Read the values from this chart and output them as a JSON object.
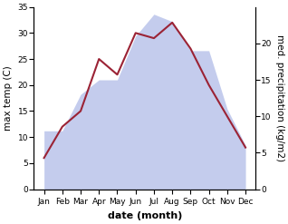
{
  "months": [
    "Jan",
    "Feb",
    "Mar",
    "Apr",
    "May",
    "Jun",
    "Jul",
    "Aug",
    "Sep",
    "Oct",
    "Nov",
    "Dec"
  ],
  "max_temp": [
    6,
    12,
    15,
    25,
    22,
    30,
    29,
    32,
    27,
    20,
    14,
    8
  ],
  "precipitation": [
    8,
    8,
    13,
    15,
    15,
    21,
    24,
    23,
    19,
    19,
    11,
    6
  ],
  "temp_ylim": [
    0,
    35
  ],
  "precip_ylim": [
    0,
    25
  ],
  "temp_yticks": [
    0,
    5,
    10,
    15,
    20,
    25,
    30,
    35
  ],
  "precip_yticks": [
    0,
    5,
    10,
    15,
    20
  ],
  "fill_color": "#b0bce8",
  "fill_alpha": 0.75,
  "line_color": "#9b2335",
  "line_width": 1.5,
  "xlabel": "date (month)",
  "ylabel_left": "max temp (C)",
  "ylabel_right": "med. precipitation (kg/m2)",
  "bg_color": "#ffffff",
  "label_fontsize": 7.5,
  "tick_fontsize": 6.5
}
